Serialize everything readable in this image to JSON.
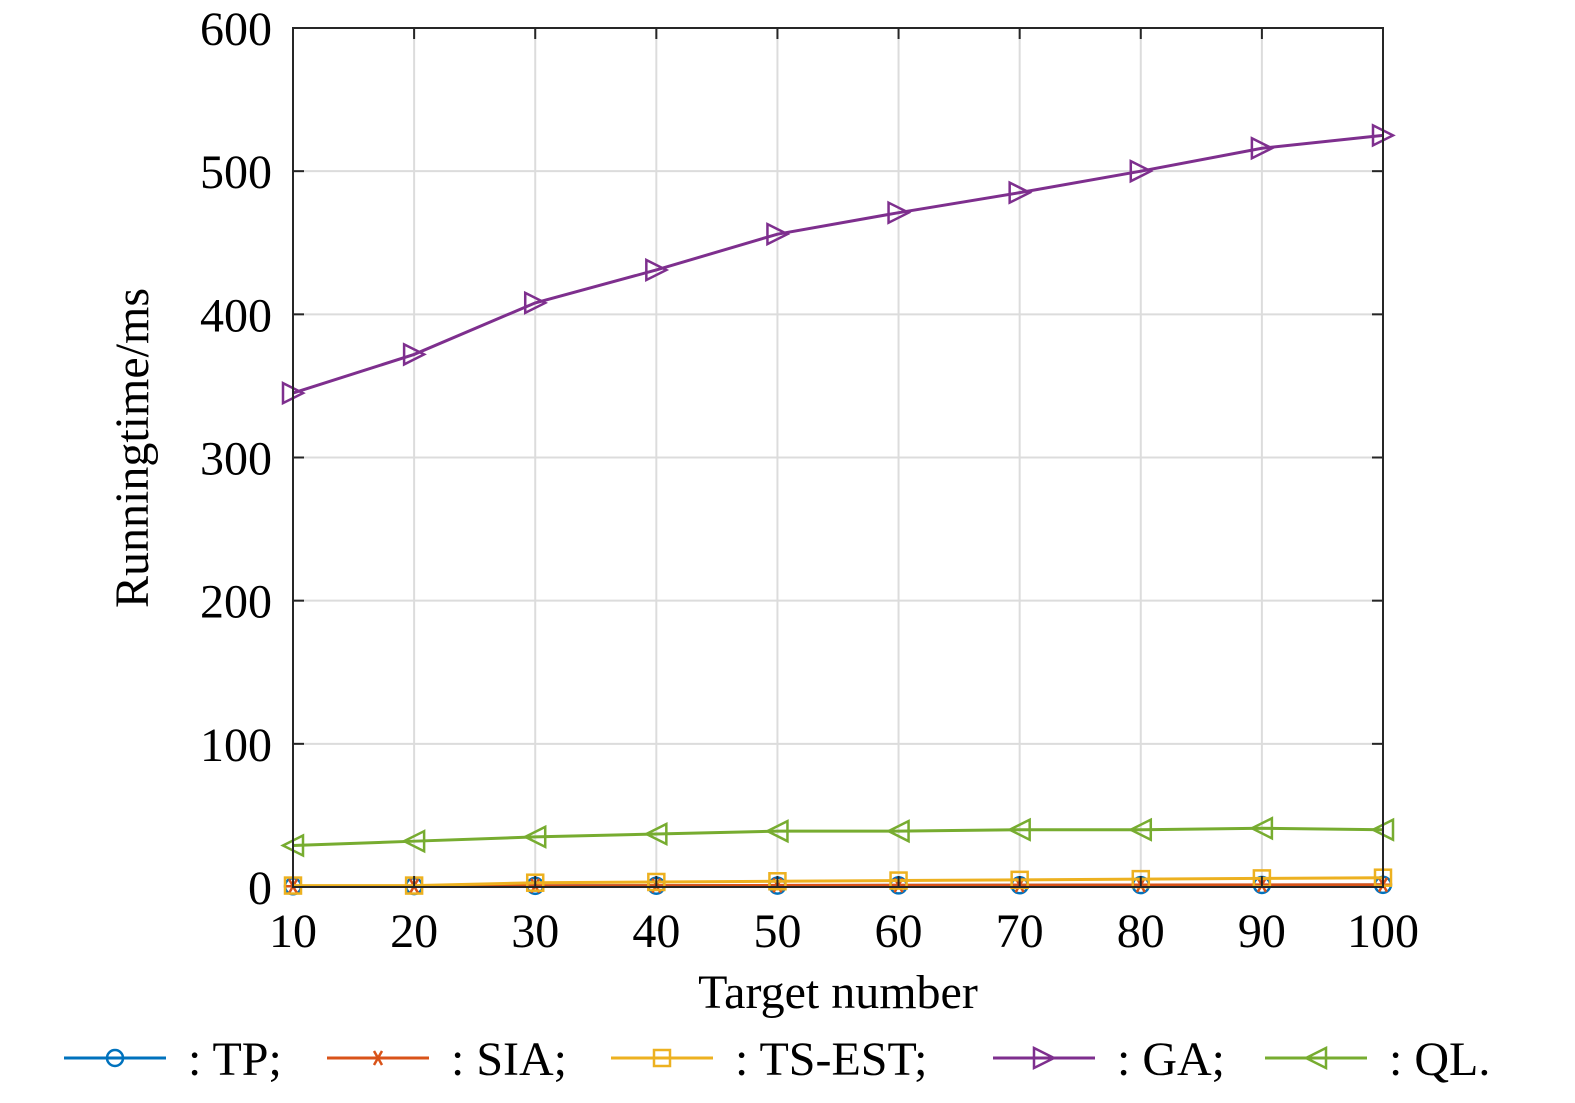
{
  "chart_data": {
    "type": "line",
    "title": "",
    "xlabel": "Target number",
    "ylabel": "Runningtime/ms",
    "xlim": [
      10,
      100
    ],
    "ylim": [
      0,
      600
    ],
    "grid": true,
    "legend_position": "bottom",
    "x": [
      10,
      20,
      30,
      40,
      50,
      60,
      70,
      80,
      90,
      100
    ],
    "x_ticks": [
      "10",
      "20",
      "30",
      "40",
      "50",
      "60",
      "70",
      "80",
      "90",
      "100"
    ],
    "y_ticks": [
      "0",
      "100",
      "200",
      "300",
      "400",
      "500",
      "600"
    ],
    "series": [
      {
        "name": ": TP;",
        "marker": "circle",
        "color": "#0072BD",
        "values": [
          0.5,
          0.6,
          0.8,
          0.9,
          1.0,
          1.1,
          1.2,
          1.3,
          1.4,
          1.5
        ]
      },
      {
        "name": ": SIA;",
        "marker": "asterisk",
        "color": "#D95319",
        "values": [
          0.5,
          0.6,
          0.9,
          1.0,
          1.1,
          1.2,
          1.3,
          1.4,
          1.5,
          1.6
        ]
      },
      {
        "name": ": TS-EST;",
        "marker": "square",
        "color": "#EDB120",
        "values": [
          1,
          1,
          3,
          3.5,
          4,
          4.5,
          5,
          5.5,
          6,
          6.5
        ]
      },
      {
        "name": ": GA;",
        "marker": "triangle-right",
        "color": "#7E2F8E",
        "values": [
          345,
          372,
          408,
          431,
          456,
          471,
          485,
          500,
          516,
          525
        ]
      },
      {
        "name": ": QL.",
        "marker": "triangle-left",
        "color": "#77AC30",
        "values": [
          29,
          32,
          35,
          37,
          39,
          39,
          40,
          40,
          41,
          40
        ]
      }
    ]
  }
}
